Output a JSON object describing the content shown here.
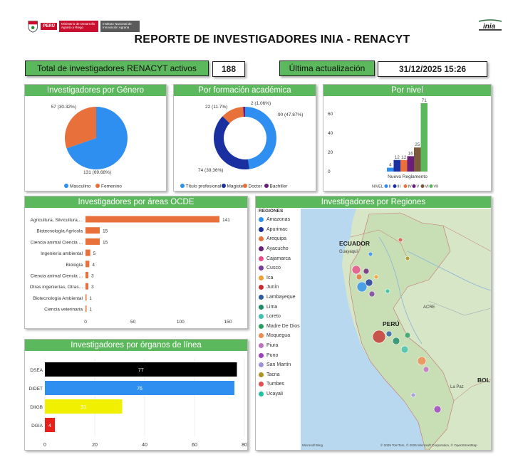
{
  "header": {
    "title": "REPORTE DE INVESTIGADORES INIA - RENACYT",
    "logo_peru": "PERÚ",
    "logo_ministry": "Ministerio de Desarrollo Agrario y Riego",
    "logo_institute": "Instituto Nacional de Innovación Agraria",
    "logo_inia": "inia"
  },
  "kpis": {
    "total_label": "Total de investigadores RENACYT activos",
    "total_value": "188",
    "update_label": "Última actualización",
    "update_value": "31/12/2025 15:26"
  },
  "panels": {
    "gender": "Investigadores por Género",
    "formation": "Por formación académica",
    "level": "Por nivel",
    "ocde": "Investigadores por áreas OCDE",
    "regions": "Investigadores por Regiones",
    "organs": "Investigadores por órganos de línea"
  },
  "chart_data": [
    {
      "id": "gender",
      "type": "pie",
      "categories": [
        "Masculino",
        "Femenino"
      ],
      "values": [
        131,
        57
      ],
      "labels": [
        "131 (69.68%)",
        "57 (30.32%)"
      ],
      "colors": [
        "#2e8ff0",
        "#e8703a"
      ]
    },
    {
      "id": "formation",
      "type": "pie",
      "donut": true,
      "categories": [
        "Título profesional",
        "Magister",
        "Doctor",
        "Bachiller"
      ],
      "values": [
        90,
        74,
        22,
        2
      ],
      "labels": [
        "90 (47.87%)",
        "74 (39.36%)",
        "22 (11.7%)",
        "2 (1.06%)"
      ],
      "colors": [
        "#2e8ff0",
        "#1a2fa0",
        "#e8703a",
        "#6b1d7a"
      ]
    },
    {
      "id": "level",
      "type": "bar",
      "categories": [
        "Nuevo Reglamento"
      ],
      "legend_title": "NIVEL",
      "series": [
        {
          "name": "II",
          "values": [
            4
          ]
        },
        {
          "name": "III",
          "values": [
            12
          ]
        },
        {
          "name": "IV",
          "values": [
            12
          ]
        },
        {
          "name": "V",
          "values": [
            16
          ]
        },
        {
          "name": "VI",
          "values": [
            25
          ]
        },
        {
          "name": "VII",
          "values": [
            71
          ]
        }
      ],
      "colors": [
        "#2e8ff0",
        "#1a2fa0",
        "#e8703a",
        "#6b1d7a",
        "#7a5a3a",
        "#5cb85c"
      ],
      "ylim": [
        0,
        71
      ],
      "yticks": [
        0,
        20,
        40,
        60
      ]
    },
    {
      "id": "ocde",
      "type": "bar",
      "orientation": "horizontal",
      "categories": [
        "Agricultura, Silvicultura,...",
        "Biotecnología Agrícola",
        "Ciencia animal Ciencia ...",
        "Ingeniería ambiental",
        "Biología",
        "Ciencia animal Ciencia ...",
        "Otras ingenierías, Otras...",
        "Biotecnología Ambiental",
        "Ciencia veterinaria"
      ],
      "values": [
        141,
        15,
        15,
        5,
        4,
        3,
        3,
        1,
        1
      ],
      "color": "#e8703a",
      "xlim": [
        0,
        150
      ],
      "xticks": [
        0,
        50,
        100,
        150
      ]
    },
    {
      "id": "organs",
      "type": "bar",
      "orientation": "horizontal",
      "categories": [
        "DSEA",
        "DIDET",
        "DIIGB",
        "DGIA"
      ],
      "values": [
        77,
        76,
        31,
        4
      ],
      "colors": [
        "#000000",
        "#2e8ff0",
        "#f0f000",
        "#e8201a"
      ],
      "value_colors": [
        "#ffffff",
        "#ffffff",
        "#ffffff",
        "#ffffff"
      ],
      "xlim": [
        0,
        80
      ],
      "xticks": [
        0,
        20,
        40,
        60,
        80
      ]
    }
  ],
  "regions": {
    "legend_title": "REGIONES",
    "items": [
      {
        "name": "Amazonas",
        "color": "#2e8ff0"
      },
      {
        "name": "Apurimac",
        "color": "#1a2fa0"
      },
      {
        "name": "Arequipa",
        "color": "#e8703a"
      },
      {
        "name": "Ayacucho",
        "color": "#6b1d7a"
      },
      {
        "name": "Cajamarca",
        "color": "#e84a8a"
      },
      {
        "name": "Cusco",
        "color": "#7a3aa0"
      },
      {
        "name": "Ica",
        "color": "#f0a030"
      },
      {
        "name": "Junín",
        "color": "#c83030"
      },
      {
        "name": "Lambayeque",
        "color": "#2a5aa0"
      },
      {
        "name": "Lima",
        "color": "#1a8a6a"
      },
      {
        "name": "Loreto",
        "color": "#40c0b0"
      },
      {
        "name": "Madre De Dios",
        "color": "#2aa060"
      },
      {
        "name": "Moquegua",
        "color": "#f08a50"
      },
      {
        "name": "Piura",
        "color": "#c070c0"
      },
      {
        "name": "Puno",
        "color": "#a040c0"
      },
      {
        "name": "San Martín",
        "color": "#a090e0"
      },
      {
        "name": "Tacna",
        "color": "#b09020"
      },
      {
        "name": "Tumbes",
        "color": "#e05050"
      },
      {
        "name": "Ucayali",
        "color": "#20c0a0"
      }
    ],
    "map_labels": {
      "ecuador": "ECUADOR",
      "guayaquil": "Guayaquil",
      "peru": "PERÚ",
      "bolivia": "BOL",
      "acre": "ACRE",
      "la_paz": "La Paz",
      "attribution": "© 2025 TomTom, © 2025 Microsoft Corporation, © OpenStreetMap",
      "bing": "Microsoft Bing"
    }
  }
}
